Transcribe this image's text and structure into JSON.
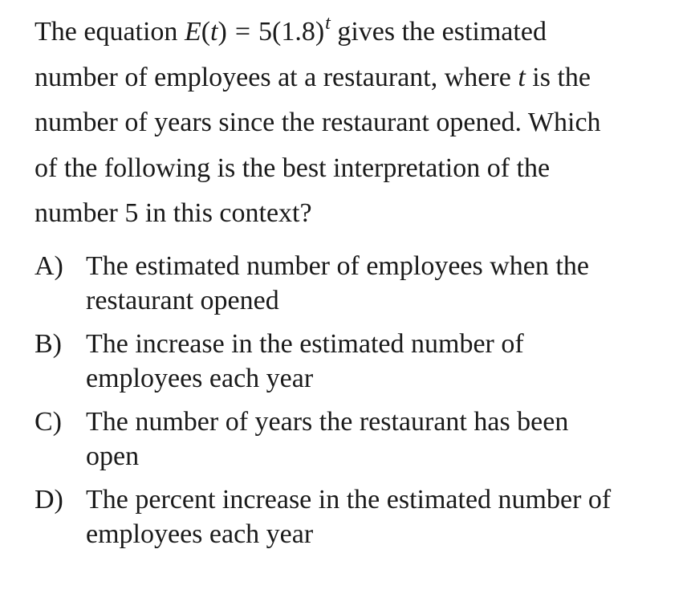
{
  "question": {
    "prefix": "The equation ",
    "func_name": "E",
    "open_paren": "(",
    "var": "t",
    "close_paren": ")",
    "equals": "=",
    "base": "5(1.8)",
    "exponent": "t",
    "line1_after": " gives the estimated",
    "line2_before": "number of employees at a restaurant, where ",
    "line2_var": "t",
    "line2_after": " is the",
    "line3": "number of years since the restaurant opened. Which",
    "line4": "of the following is the best interpretation of the",
    "line5": "number 5 in this context?"
  },
  "choices": [
    {
      "letter": "A)",
      "line1": "The estimated number of employees when the",
      "line2": "restaurant opened"
    },
    {
      "letter": "B)",
      "line1": "The increase in the estimated number of",
      "line2": "employees each year"
    },
    {
      "letter": "C)",
      "line1": "The number of years the restaurant has been",
      "line2": "open"
    },
    {
      "letter": "D)",
      "line1": "The percent increase in the estimated number of",
      "line2": "employees each year"
    }
  ]
}
